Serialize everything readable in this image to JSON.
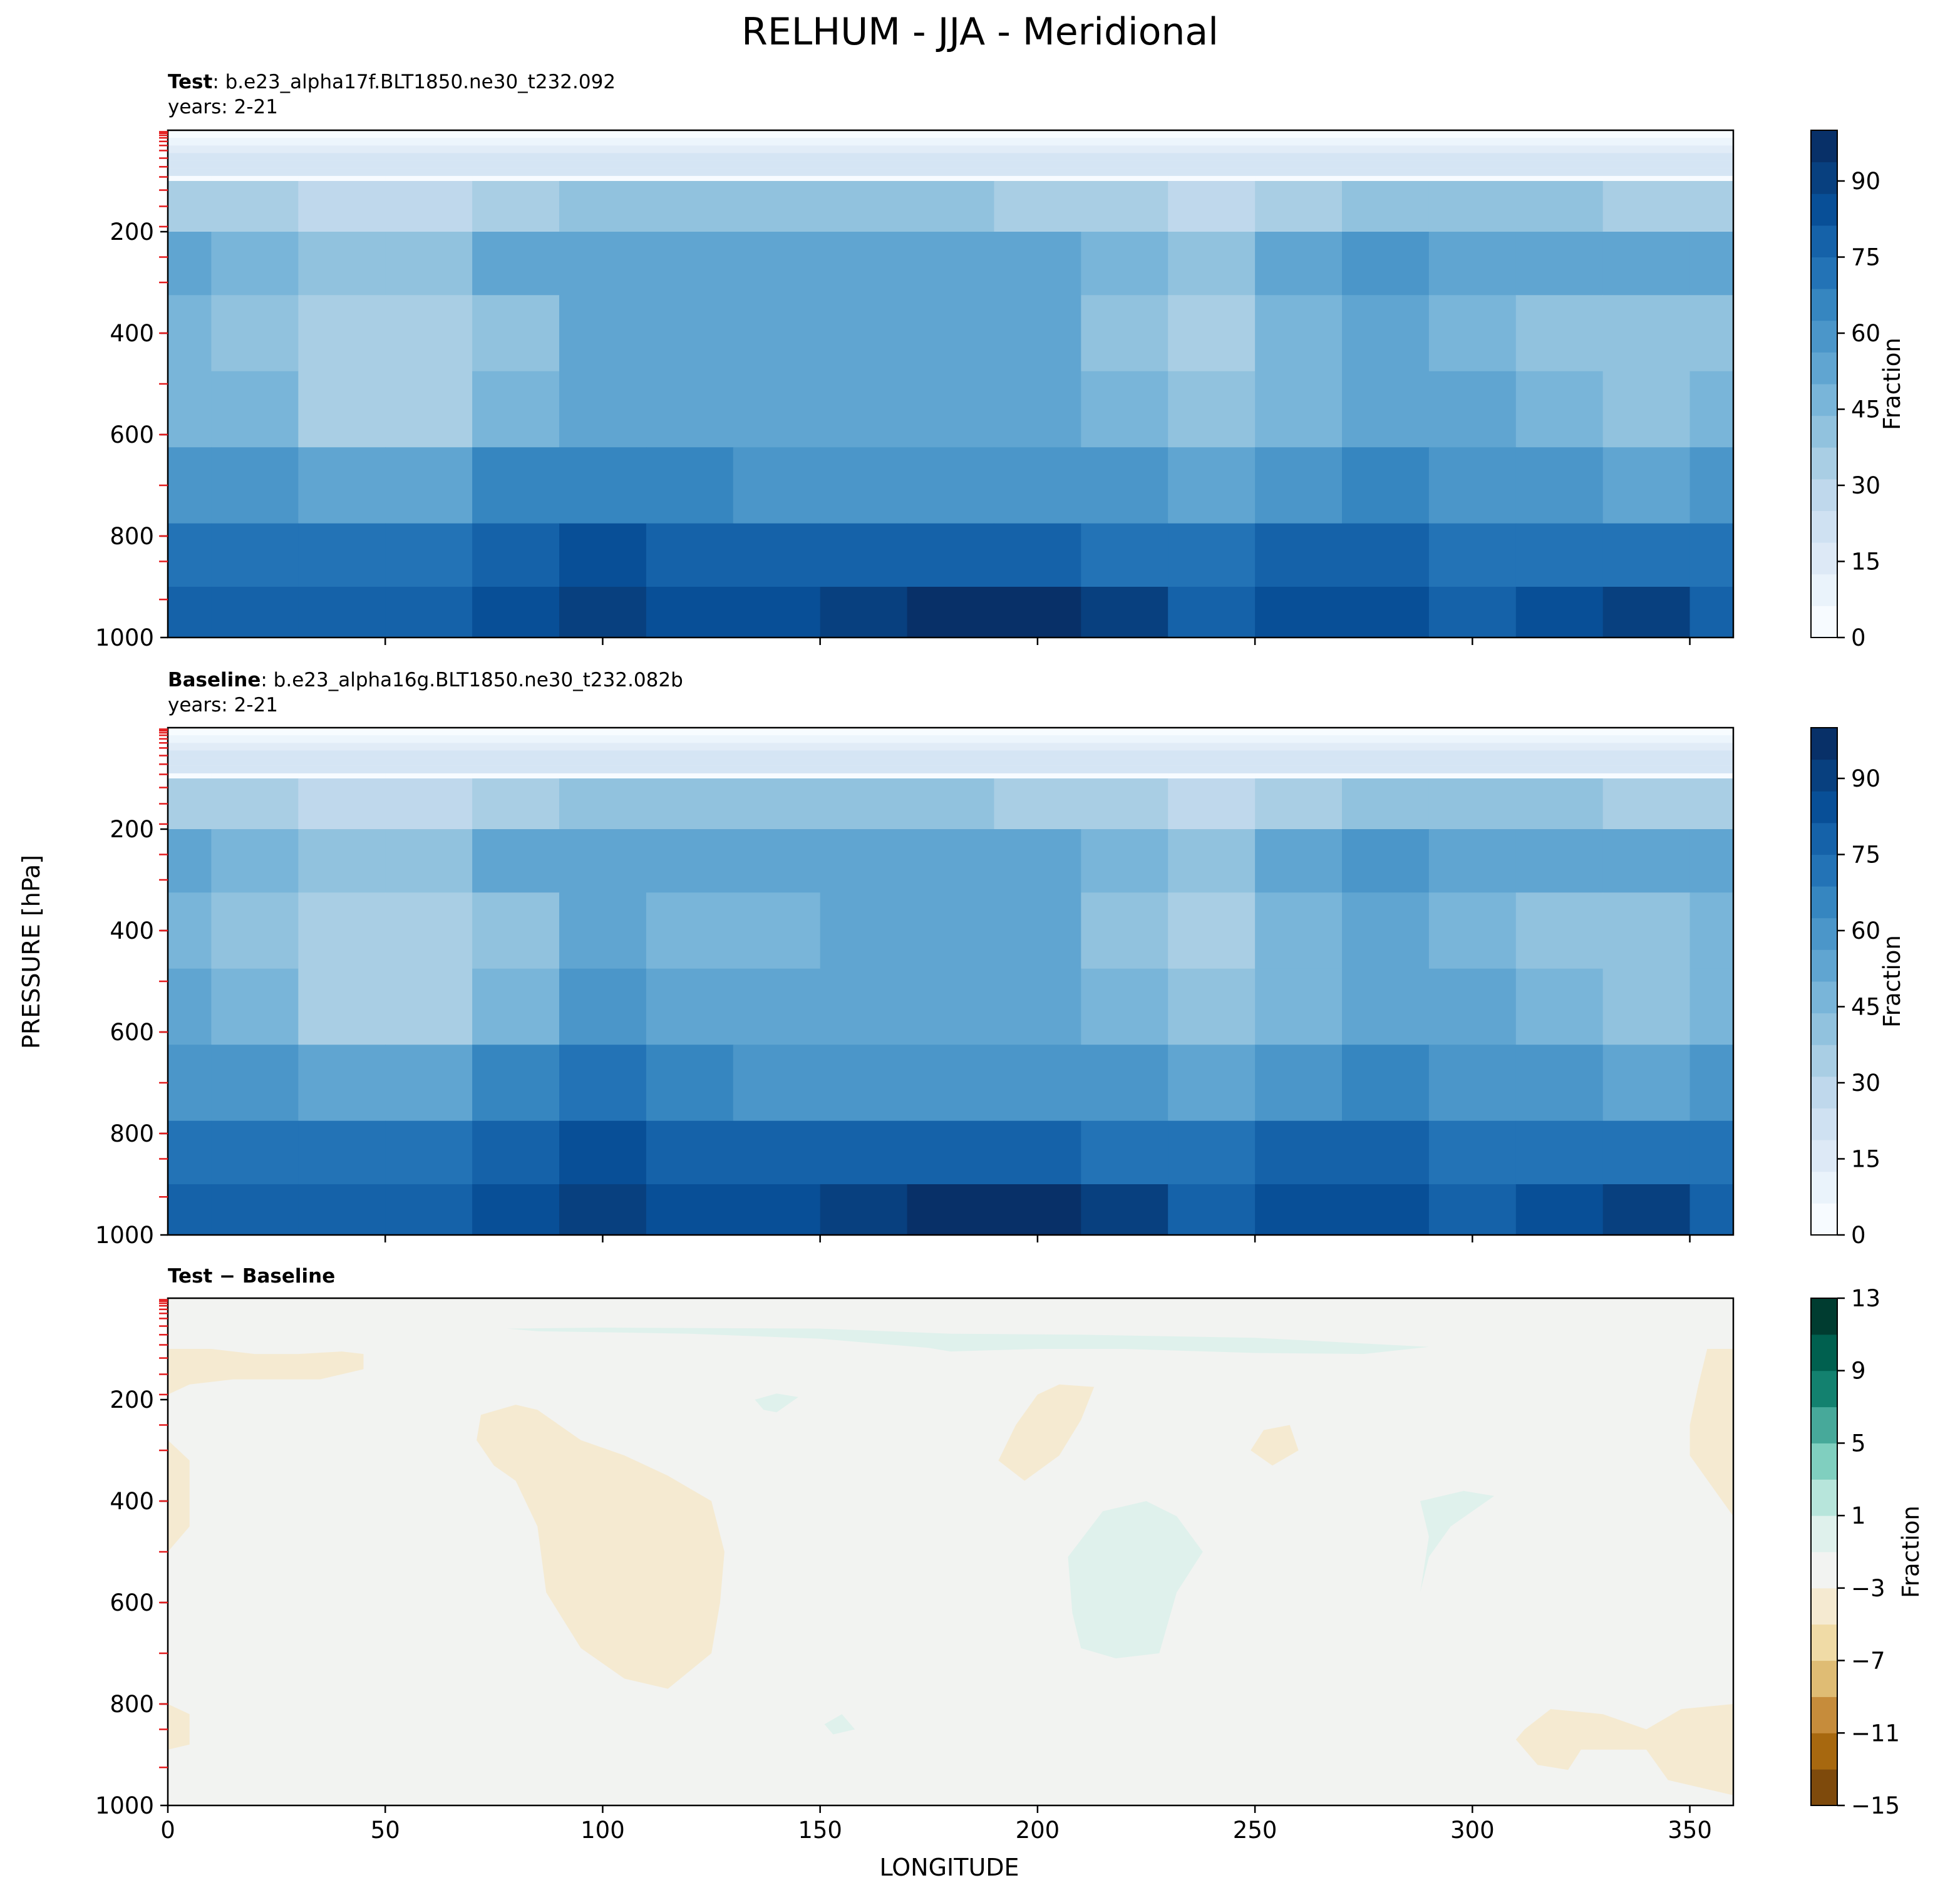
{
  "figure": {
    "title": "RELHUM - JJA - Meridional",
    "ylabel": "PRESSURE [hPa]",
    "xlabel": "LONGITUDE"
  },
  "colors": {
    "blues": [
      "#f7fbff",
      "#eaf3fb",
      "#dde9f6",
      "#cfe1f2",
      "#bfd8ec",
      "#a9cee4",
      "#91c2de",
      "#79b5d9",
      "#60a5d1",
      "#4b96c9",
      "#3686c0",
      "#2373b6",
      "#1562a9",
      "#084f97",
      "#08407f",
      "#083068"
    ],
    "diff_levels": [
      -15,
      -13,
      -11,
      -9,
      -7,
      -5,
      -3,
      -1,
      1,
      3,
      5,
      7,
      9,
      11,
      13
    ],
    "diff_colors": [
      "#543005",
      "#7e4a0c",
      "#a7680f",
      "#c68c3b",
      "#dfbc74",
      "#f0dba6",
      "#f5ead1",
      "#f2f3f1",
      "#dff1ec",
      "#b7e5db",
      "#80cfbf",
      "#47a99a",
      "#13816f",
      "#00604f",
      "#003c30"
    ]
  },
  "panels": [
    {
      "title_bold": "Test",
      "title_rest": ": b.e23_alpha17f.BLT1850.ne30_t232.092",
      "years": "years: 2-21",
      "colorbar_label": "Fraction"
    },
    {
      "title_bold": "Baseline",
      "title_rest": ": b.e23_alpha16g.BLT1850.ne30_t232.082b",
      "years": "years: 2-21",
      "colorbar_label": "Fraction"
    },
    {
      "title_bold": "Test − Baseline",
      "title_rest": "",
      "years": "",
      "colorbar_label": "Fraction"
    }
  ],
  "chart_data": [
    {
      "type": "heatmap",
      "title": "Test : b.e23_alpha17f.BLT1850.ne30_t232.092",
      "subtitle": "years: 2-21",
      "xlabel": "",
      "ylabel": "PRESSURE [hPa]",
      "xlim": [
        0,
        360
      ],
      "ylim": [
        1000,
        0
      ],
      "xticks": [
        50,
        100,
        150,
        200,
        250,
        300,
        350
      ],
      "xtick_labels": [],
      "yticks": [
        200,
        400,
        600,
        800,
        1000
      ],
      "ytick_labels": [
        "200",
        "400",
        "600",
        "800",
        "1000"
      ],
      "colorbar": {
        "label": "Fraction",
        "ticks": [
          0,
          15,
          30,
          45,
          60,
          75,
          90
        ],
        "tick_labels": [
          "0",
          "15",
          "30",
          "45",
          "60",
          "75",
          "90"
        ],
        "range": [
          0,
          100
        ]
      },
      "x": [
        0,
        20,
        40,
        60,
        80,
        100,
        120,
        140,
        160,
        180,
        200,
        220,
        240,
        260,
        280,
        300,
        320,
        340,
        360
      ],
      "p": [
        50,
        150,
        250,
        400,
        550,
        700,
        850,
        950
      ],
      "z": [
        [
          5,
          5,
          5,
          5,
          5,
          5,
          5,
          5,
          5,
          5,
          5,
          5,
          5,
          5,
          5,
          5,
          5,
          5,
          5
        ],
        [
          33,
          32,
          26,
          28,
          35,
          38,
          40,
          38,
          38,
          38,
          36,
          33,
          28,
          33,
          38,
          40,
          38,
          36,
          33
        ],
        [
          50,
          48,
          38,
          42,
          50,
          55,
          53,
          52,
          55,
          56,
          53,
          47,
          40,
          52,
          57,
          55,
          52,
          52,
          50
        ],
        [
          44,
          40,
          34,
          35,
          42,
          52,
          52,
          52,
          52,
          52,
          50,
          43,
          35,
          45,
          50,
          48,
          42,
          40,
          43
        ],
        [
          48,
          47,
          36,
          37,
          44,
          54,
          54,
          53,
          54,
          54,
          52,
          46,
          40,
          48,
          52,
          50,
          45,
          43,
          44
        ],
        [
          60,
          58,
          55,
          56,
          63,
          66,
          63,
          61,
          61,
          61,
          61,
          58,
          56,
          61,
          66,
          61,
          58,
          56,
          57
        ],
        [
          72,
          73,
          72,
          72,
          80,
          84,
          80,
          77,
          76,
          76,
          76,
          74,
          73,
          77,
          81,
          74,
          74,
          74,
          73
        ],
        [
          80,
          80,
          78,
          78,
          86,
          91,
          84,
          82,
          89,
          94,
          94,
          89,
          80,
          86,
          84,
          80,
          87,
          89,
          80
        ]
      ]
    },
    {
      "type": "heatmap",
      "title": "Baseline : b.e23_alpha16g.BLT1850.ne30_t232.082b",
      "subtitle": "years: 2-21",
      "xlabel": "",
      "ylabel": "PRESSURE [hPa]",
      "xlim": [
        0,
        360
      ],
      "ylim": [
        1000,
        0
      ],
      "xticks": [
        50,
        100,
        150,
        200,
        250,
        300,
        350
      ],
      "xtick_labels": [],
      "yticks": [
        200,
        400,
        600,
        800,
        1000
      ],
      "ytick_labels": [
        "200",
        "400",
        "600",
        "800",
        "1000"
      ],
      "colorbar": {
        "label": "Fraction",
        "ticks": [
          0,
          15,
          30,
          45,
          60,
          75,
          90
        ],
        "tick_labels": [
          "0",
          "15",
          "30",
          "45",
          "60",
          "75",
          "90"
        ],
        "range": [
          0,
          100
        ]
      },
      "x": [
        0,
        20,
        40,
        60,
        80,
        100,
        120,
        140,
        160,
        180,
        200,
        220,
        240,
        260,
        280,
        300,
        320,
        340,
        360
      ],
      "p": [
        50,
        150,
        250,
        400,
        550,
        700,
        850,
        950
      ],
      "z": [
        [
          5,
          5,
          5,
          5,
          5,
          5,
          5,
          5,
          5,
          5,
          5,
          5,
          5,
          5,
          5,
          5,
          5,
          5,
          5
        ],
        [
          33,
          32,
          28,
          28,
          35,
          38,
          40,
          39,
          38,
          38,
          36,
          34,
          28,
          33,
          38,
          40,
          38,
          36,
          33
        ],
        [
          52,
          49,
          39,
          42,
          50,
          55,
          53,
          52,
          55,
          56,
          52,
          45,
          40,
          52,
          57,
          55,
          52,
          52,
          51
        ],
        [
          46,
          42,
          34,
          35,
          43,
          53,
          47,
          45,
          52,
          52,
          50,
          43,
          35,
          45,
          50,
          49,
          42,
          40,
          45
        ],
        [
          50,
          48,
          36,
          37,
          46,
          58,
          54,
          53,
          54,
          54,
          51,
          46,
          40,
          48,
          52,
          50,
          45,
          43,
          46
        ],
        [
          61,
          58,
          55,
          56,
          64,
          69,
          66,
          61,
          61,
          61,
          59,
          58,
          56,
          61,
          66,
          62,
          58,
          56,
          57
        ],
        [
          73,
          74,
          72,
          72,
          80,
          85,
          80,
          77,
          76,
          76,
          76,
          74,
          73,
          77,
          81,
          74,
          74,
          74,
          73
        ],
        [
          80,
          80,
          78,
          78,
          86,
          91,
          84,
          82,
          89,
          94,
          94,
          89,
          80,
          86,
          84,
          80,
          87,
          89,
          80
        ]
      ]
    },
    {
      "type": "heatmap",
      "title": "Test − Baseline",
      "subtitle": "",
      "xlabel": "LONGITUDE",
      "ylabel": "PRESSURE [hPa]",
      "xlim": [
        0,
        360
      ],
      "ylim": [
        1000,
        0
      ],
      "xticks": [
        0,
        50,
        100,
        150,
        200,
        250,
        300,
        350
      ],
      "xtick_labels": [
        "0",
        "50",
        "100",
        "150",
        "200",
        "250",
        "300",
        "350"
      ],
      "yticks": [
        200,
        400,
        600,
        800,
        1000
      ],
      "ytick_labels": [
        "200",
        "400",
        "600",
        "800",
        "1000"
      ],
      "colorbar": {
        "label": "Fraction",
        "ticks": [
          -15,
          -11,
          -7,
          -3,
          1,
          5,
          9,
          13
        ],
        "tick_labels": [
          "−15",
          "−11",
          "−7",
          "−3",
          "1",
          "5",
          "9",
          "13"
        ],
        "range": [
          -15,
          13
        ]
      },
      "regions": [
        {
          "sign": "negative",
          "points": [
            [
              0,
              190
            ],
            [
              0,
              140
            ],
            [
              0,
              100
            ],
            [
              10,
              100
            ],
            [
              20,
              110
            ],
            [
              30,
              110
            ],
            [
              40,
              105
            ],
            [
              45,
              110
            ],
            [
              45,
              140
            ],
            [
              35,
              160
            ],
            [
              25,
              160
            ],
            [
              15,
              160
            ],
            [
              5,
              170
            ]
          ]
        },
        {
          "sign": "negative",
          "points": [
            [
              0,
              250
            ],
            [
              0,
              500
            ],
            [
              5,
              450
            ],
            [
              5,
              320
            ],
            [
              0,
              280
            ]
          ]
        },
        {
          "sign": "negative",
          "points": [
            [
              71,
              280
            ],
            [
              72,
              230
            ],
            [
              80,
              210
            ],
            [
              85,
              220
            ],
            [
              95,
              280
            ],
            [
              105,
              310
            ],
            [
              115,
              350
            ],
            [
              125,
              400
            ],
            [
              128,
              500
            ],
            [
              127,
              600
            ],
            [
              125,
              700
            ],
            [
              115,
              770
            ],
            [
              105,
              750
            ],
            [
              95,
              690
            ],
            [
              87,
              580
            ],
            [
              85,
              450
            ],
            [
              80,
              360
            ],
            [
              75,
              330
            ]
          ]
        },
        {
          "sign": "negative",
          "points": [
            [
              191,
              320
            ],
            [
              195,
              250
            ],
            [
              200,
              190
            ],
            [
              205,
              170
            ],
            [
              213,
              175
            ],
            [
              210,
              240
            ],
            [
              205,
              310
            ],
            [
              197,
              360
            ]
          ]
        },
        {
          "sign": "negative",
          "points": [
            [
              249,
              300
            ],
            [
              252,
              260
            ],
            [
              258,
              250
            ],
            [
              260,
              300
            ],
            [
              254,
              330
            ]
          ]
        },
        {
          "sign": "negative",
          "points": [
            [
              360,
              100
            ],
            [
              354,
              100
            ],
            [
              352,
              170
            ],
            [
              350,
              250
            ],
            [
              350,
              310
            ],
            [
              355,
              370
            ],
            [
              360,
              430
            ]
          ]
        },
        {
          "sign": "negative",
          "points": [
            [
              312,
              850
            ],
            [
              318,
              810
            ],
            [
              330,
              820
            ],
            [
              340,
              850
            ],
            [
              348,
              810
            ],
            [
              360,
              800
            ],
            [
              360,
              980
            ],
            [
              345,
              950
            ],
            [
              340,
              890
            ],
            [
              325,
              890
            ],
            [
              322,
              930
            ],
            [
              315,
              920
            ],
            [
              310,
              870
            ]
          ]
        },
        {
          "sign": "negative",
          "points": [
            [
              0,
              800
            ],
            [
              5,
              820
            ],
            [
              5,
              880
            ],
            [
              0,
              890
            ]
          ]
        },
        {
          "sign": "positive",
          "points": [
            [
              78,
              60
            ],
            [
              100,
              58
            ],
            [
              150,
              60
            ],
            [
              180,
              70
            ],
            [
              210,
              72
            ],
            [
              250,
              78
            ],
            [
              290,
              96
            ],
            [
              275,
              110
            ],
            [
              250,
              108
            ],
            [
              220,
              100
            ],
            [
              200,
              100
            ],
            [
              180,
              105
            ],
            [
              175,
              98
            ],
            [
              150,
              80
            ],
            [
              120,
              70
            ],
            [
              85,
              65
            ]
          ]
        },
        {
          "sign": "positive",
          "points": [
            [
              135,
              200
            ],
            [
              140,
              188
            ],
            [
              145,
              195
            ],
            [
              140,
              225
            ],
            [
              137,
              220
            ]
          ]
        },
        {
          "sign": "positive",
          "points": [
            [
              207,
              510
            ],
            [
              215,
              420
            ],
            [
              225,
              400
            ],
            [
              232,
              430
            ],
            [
              238,
              500
            ],
            [
              232,
              580
            ],
            [
              228,
              700
            ],
            [
              218,
              710
            ],
            [
              210,
              690
            ],
            [
              208,
              620
            ]
          ]
        },
        {
          "sign": "positive",
          "points": [
            [
              288,
              580
            ],
            [
              290,
              470
            ],
            [
              288,
              400
            ],
            [
              298,
              380
            ],
            [
              305,
              390
            ],
            [
              300,
              420
            ],
            [
              295,
              450
            ],
            [
              290,
              510
            ]
          ]
        },
        {
          "sign": "positive",
          "points": [
            [
              151,
              840
            ],
            [
              155,
              820
            ],
            [
              158,
              850
            ],
            [
              153,
              860
            ]
          ]
        }
      ]
    }
  ]
}
